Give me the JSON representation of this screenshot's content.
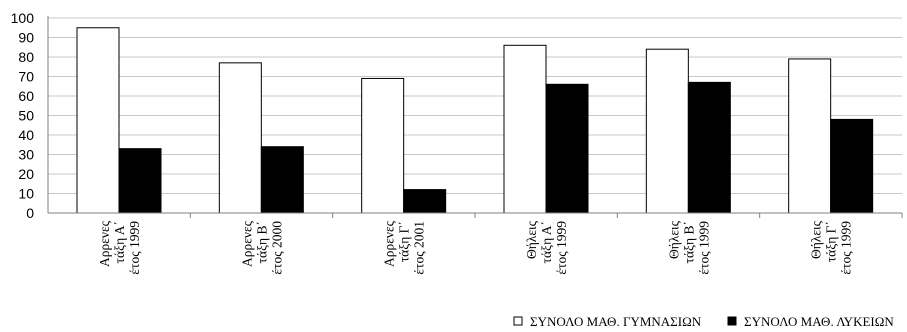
{
  "chart_data": {
    "type": "bar",
    "categories": [
      [
        "Αρρενες",
        "τάξη Α΄",
        "έτος 1999"
      ],
      [
        "Αρρενες",
        "τάξη Β΄",
        "έτος 2000"
      ],
      [
        "Αρρενες",
        "τάξη Γ΄",
        "έτος 2001"
      ],
      [
        "Θήλεις",
        "τάξη Α΄",
        "έτος 1999"
      ],
      [
        "Θήλεις",
        "τάξη Β΄",
        "έτος 1999"
      ],
      [
        "Θήλεις",
        "τάξη Γ΄",
        "έτος 1999"
      ]
    ],
    "series": [
      {
        "name": "ΣΥΝΟΛΟ ΜΑΘ. ΓΥΜΝΑΣΙΩΝ",
        "values": [
          95,
          77,
          69,
          86,
          84,
          79
        ],
        "color": "#ffffff"
      },
      {
        "name": "ΣΥΝΟΛΟ ΜΑΘ. ΛΥΚΕΙΩΝ",
        "values": [
          33,
          34,
          12,
          66,
          67,
          48
        ],
        "color": "#000000"
      }
    ],
    "ylim": [
      0,
      100
    ],
    "yticks": [
      0,
      10,
      20,
      30,
      40,
      50,
      60,
      70,
      80,
      90,
      100
    ],
    "grid": true,
    "legend_position": "bottom-right"
  }
}
